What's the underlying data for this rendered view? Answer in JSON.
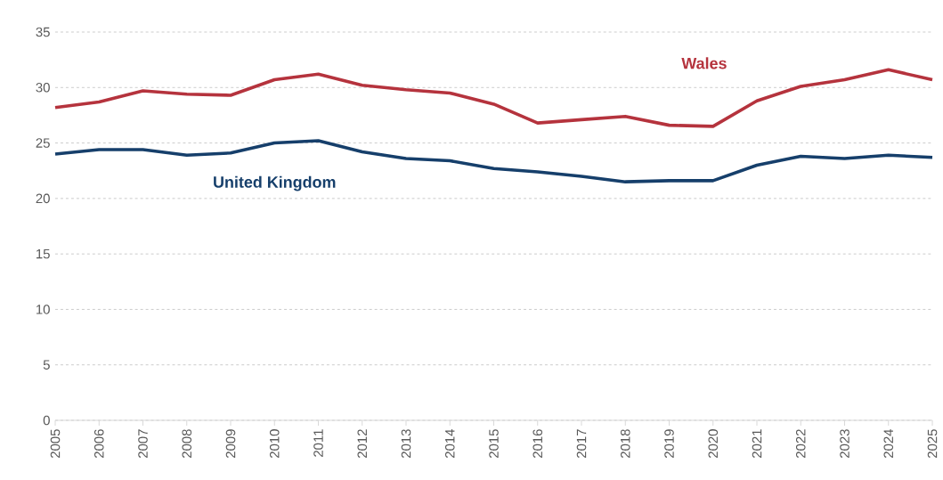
{
  "chart_data": {
    "type": "line",
    "x": [
      2005,
      2006,
      2007,
      2008,
      2009,
      2010,
      2011,
      2012,
      2013,
      2014,
      2015,
      2016,
      2017,
      2018,
      2019,
      2020,
      2021,
      2022,
      2023,
      2024,
      2025
    ],
    "series": [
      {
        "name": "Wales",
        "color": "#b5333d",
        "values": [
          28.2,
          28.7,
          29.7,
          29.4,
          29.3,
          30.7,
          31.2,
          30.2,
          29.8,
          29.5,
          28.5,
          26.8,
          27.1,
          27.4,
          26.6,
          26.5,
          28.8,
          30.1,
          30.7,
          31.6,
          30.7
        ]
      },
      {
        "name": "United Kingdom",
        "color": "#163f6b",
        "values": [
          24.0,
          24.4,
          24.4,
          23.9,
          24.1,
          25.0,
          25.2,
          24.2,
          23.6,
          23.4,
          22.7,
          22.4,
          22.0,
          21.5,
          21.6,
          21.6,
          23.0,
          23.8,
          23.6,
          23.9,
          23.7
        ]
      }
    ],
    "xlim": [
      2005,
      2025
    ],
    "xticks": [
      2005,
      2006,
      2007,
      2008,
      2009,
      2010,
      2011,
      2012,
      2013,
      2014,
      2015,
      2016,
      2017,
      2018,
      2019,
      2020,
      2021,
      2022,
      2023,
      2024,
      2025
    ],
    "ylim": [
      0,
      35
    ],
    "yticks": [
      0,
      5,
      10,
      15,
      20,
      25,
      30,
      35
    ],
    "grid": "y",
    "legend": false,
    "marker": "none",
    "line_style": "solid"
  }
}
